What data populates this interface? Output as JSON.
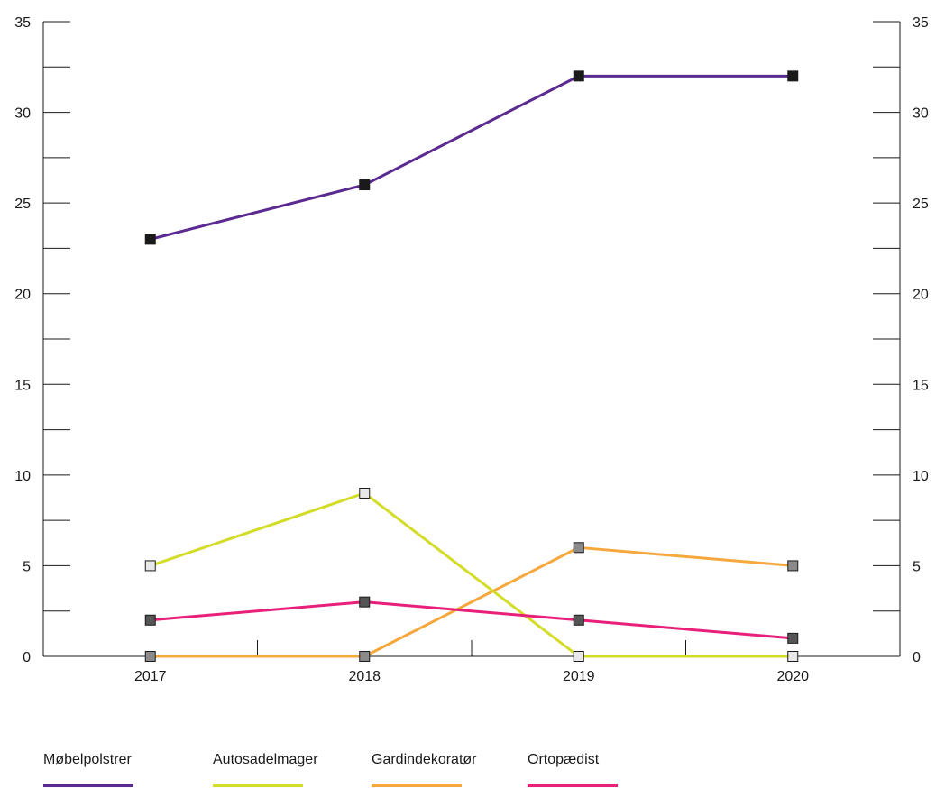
{
  "chart_data": {
    "type": "line",
    "categories": [
      "2017",
      "2018",
      "2019",
      "2020"
    ],
    "ylim": [
      0,
      35
    ],
    "yticks": [
      0,
      5,
      10,
      15,
      20,
      25,
      30,
      35
    ],
    "series": [
      {
        "name": "Møbelpolstrer",
        "values": [
          23,
          26,
          32,
          32
        ],
        "color": "#5b2a91",
        "marker_color": "#1a1a1a"
      },
      {
        "name": "Autosadelmager",
        "values": [
          5,
          9,
          0,
          0
        ],
        "color": "#d4dc2a",
        "marker_color": "#e8e8e8"
      },
      {
        "name": "Gardindekoratør",
        "values": [
          0,
          0,
          6,
          5
        ],
        "color": "#f6a83c",
        "marker_color": "#8a8a8a"
      },
      {
        "name": "Ortopædist",
        "values": [
          2,
          3,
          2,
          1
        ],
        "color": "#e8207a",
        "marker_color": "#555555"
      }
    ],
    "grid": false,
    "legend_position": "bottom"
  }
}
